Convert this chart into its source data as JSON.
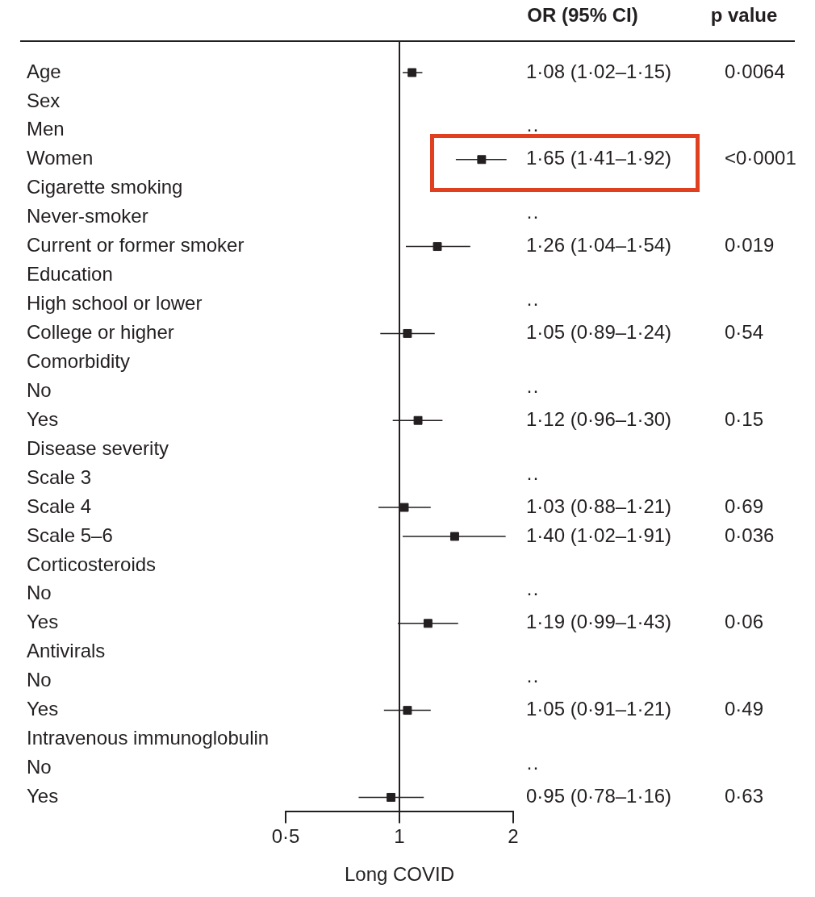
{
  "chart_data": {
    "type": "scatter",
    "orientation": "horizontal",
    "xlabel": "Long COVID",
    "log": "x",
    "xlim": [
      0.5,
      2
    ],
    "xticks": [
      {
        "value": 0.5,
        "label": "0·5"
      },
      1,
      2
    ],
    "grid": false,
    "legend": false,
    "marker": "square",
    "categories": [
      "Age",
      "Sex",
      "Men",
      "Women",
      "Cigarette smoking",
      "Never-smoker",
      "Current or former smoker",
      "Education",
      "High school or lower",
      "College or higher",
      "Comorbidity",
      "No",
      "Yes",
      "Disease severity",
      "Scale 3",
      "Scale 4",
      "Scale 5–6",
      "Corticosteroids",
      "No",
      "Yes",
      "Antivirals",
      "No",
      "Yes",
      "Intravenous immunoglobulin",
      "No",
      "Yes"
    ],
    "series": [
      {
        "color": "#231f20",
        "values": [
          1.08,
          null,
          null,
          1.65,
          null,
          null,
          1.26,
          null,
          null,
          1.05,
          null,
          null,
          1.12,
          null,
          null,
          1.03,
          1.4,
          null,
          null,
          1.19,
          null,
          null,
          1.05,
          null,
          null,
          0.95
        ],
        "errors": [
          [
            1.02,
            1.15
          ],
          null,
          null,
          [
            1.41,
            1.92
          ],
          null,
          null,
          [
            1.04,
            1.54
          ],
          null,
          null,
          [
            0.89,
            1.24
          ],
          null,
          null,
          [
            0.96,
            1.3
          ],
          null,
          null,
          [
            0.88,
            1.21
          ],
          [
            1.02,
            1.91
          ],
          null,
          null,
          [
            0.99,
            1.43
          ],
          null,
          null,
          [
            0.91,
            1.21
          ],
          null,
          null,
          [
            0.78,
            1.16
          ]
        ],
        "value_labels": [
          "1·08 (1·02–1·15)",
          null,
          "··",
          "1·65 (1·41–1·92)",
          null,
          "··",
          "1·26 (1·04–1·54)",
          null,
          "··",
          "1·05 (0·89–1·24)",
          null,
          "··",
          "1·12 (0·96–1·30)",
          null,
          "··",
          "1·03 (0·88–1·21)",
          "1·40 (1·02–1·91)",
          null,
          "··",
          "1·19 (0·99–1·43)",
          null,
          "··",
          "1·05 (0·91–1·21)",
          null,
          "··",
          "0·95 (0·78–1·16)"
        ]
      }
    ],
    "ref_lines": [
      {
        "axis": "x",
        "value": 1
      }
    ],
    "annotations": [
      "OR (95% CI)",
      "p value",
      "0·0064",
      "<0·0001",
      "0·019",
      "0·54",
      "0·15",
      "0·69",
      "0·036",
      "0·06",
      "0·49",
      "0·63"
    ]
  }
}
